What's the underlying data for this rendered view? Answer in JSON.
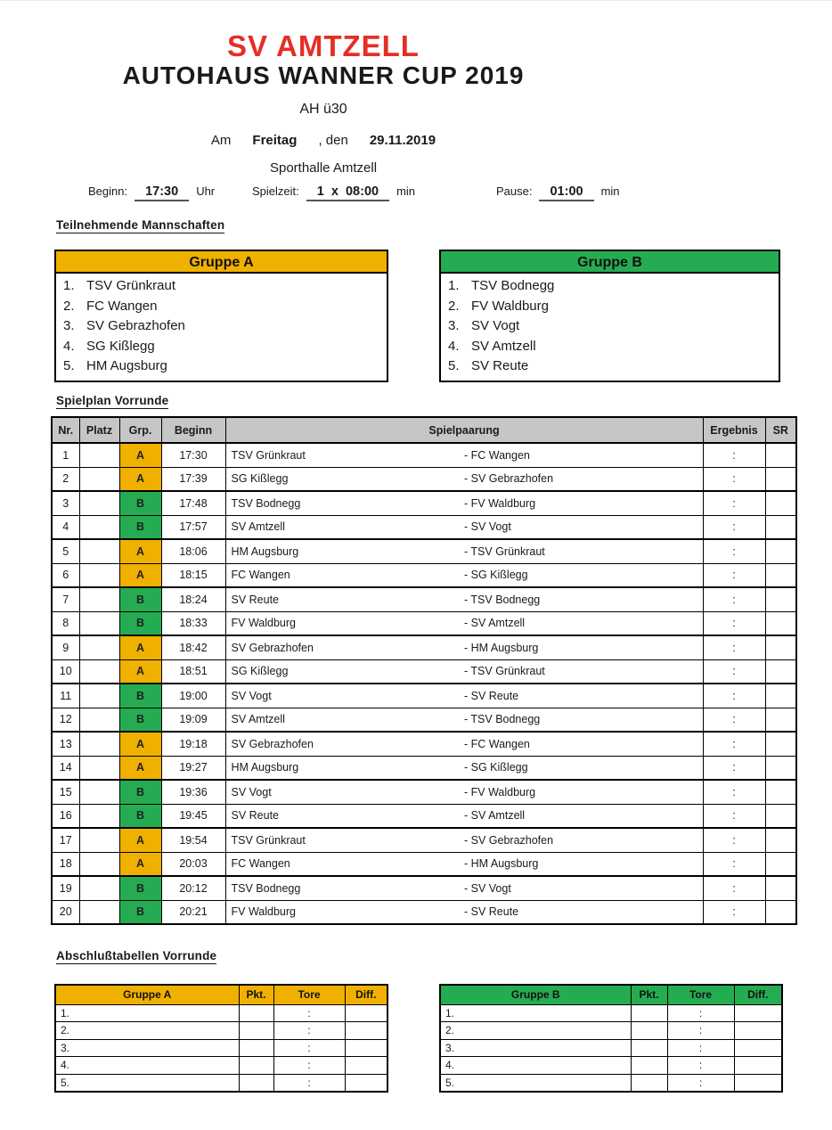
{
  "colors": {
    "red": "#e62e25",
    "yellow": "#f0b000",
    "green": "#25ac52",
    "gray": "#c6c6c6"
  },
  "header": {
    "club": "SV AMTZELL",
    "title": "AUTOHAUS WANNER CUP 2019",
    "category": "AH ü30",
    "date_line": {
      "am": "Am",
      "day": "Freitag",
      "den": ", den",
      "date": "29.11.2019"
    },
    "venue": "Sporthalle Amtzell",
    "info": {
      "beginn_label": "Beginn:",
      "beginn_value": "17:30",
      "beginn_unit": "Uhr",
      "spielzeit_label": "Spielzeit:",
      "spielzeit_value": "1  x  08:00",
      "spielzeit_unit": "min",
      "pause_label": "Pause:",
      "pause_value": "01:00",
      "pause_unit": "min"
    }
  },
  "teams_section": {
    "heading": "Teilnehmende Mannschaften",
    "group_a": {
      "title": "Gruppe A",
      "teams": [
        {
          "no": "1.",
          "name": "TSV Grünkraut"
        },
        {
          "no": "2.",
          "name": "FC Wangen"
        },
        {
          "no": "3.",
          "name": "SV Gebrazhofen"
        },
        {
          "no": "4.",
          "name": "SG Kißlegg"
        },
        {
          "no": "5.",
          "name": "HM Augsburg"
        }
      ]
    },
    "group_b": {
      "title": "Gruppe B",
      "teams": [
        {
          "no": "1.",
          "name": "TSV Bodnegg"
        },
        {
          "no": "2.",
          "name": "FV Waldburg"
        },
        {
          "no": "3.",
          "name": "SV Vogt"
        },
        {
          "no": "4.",
          "name": "SV Amtzell"
        },
        {
          "no": "5.",
          "name": "SV Reute"
        }
      ]
    }
  },
  "spielplan": {
    "heading": "Spielplan Vorrunde",
    "columns": [
      "Nr.",
      "Platz",
      "Grp.",
      "Beginn",
      "Spielpaarung",
      "Ergebnis",
      "SR"
    ],
    "match_separator": "-",
    "ergebnis_placeholder": ":",
    "rows": [
      {
        "nr": "1",
        "platz": "",
        "grp": "A",
        "beginn": "17:30",
        "home": "TSV Grünkraut",
        "away": "FC Wangen",
        "sr": ""
      },
      {
        "nr": "2",
        "platz": "",
        "grp": "A",
        "beginn": "17:39",
        "home": "SG Kißlegg",
        "away": "SV Gebrazhofen",
        "sr": ""
      },
      {
        "nr": "3",
        "platz": "",
        "grp": "B",
        "beginn": "17:48",
        "home": "TSV Bodnegg",
        "away": "FV Waldburg",
        "sr": ""
      },
      {
        "nr": "4",
        "platz": "",
        "grp": "B",
        "beginn": "17:57",
        "home": "SV Amtzell",
        "away": "SV Vogt",
        "sr": ""
      },
      {
        "nr": "5",
        "platz": "",
        "grp": "A",
        "beginn": "18:06",
        "home": "HM Augsburg",
        "away": "TSV Grünkraut",
        "sr": ""
      },
      {
        "nr": "6",
        "platz": "",
        "grp": "A",
        "beginn": "18:15",
        "home": "FC Wangen",
        "away": "SG Kißlegg",
        "sr": ""
      },
      {
        "nr": "7",
        "platz": "",
        "grp": "B",
        "beginn": "18:24",
        "home": "SV Reute",
        "away": "TSV Bodnegg",
        "sr": ""
      },
      {
        "nr": "8",
        "platz": "",
        "grp": "B",
        "beginn": "18:33",
        "home": "FV Waldburg",
        "away": "SV Amtzell",
        "sr": ""
      },
      {
        "nr": "9",
        "platz": "",
        "grp": "A",
        "beginn": "18:42",
        "home": "SV Gebrazhofen",
        "away": "HM Augsburg",
        "sr": ""
      },
      {
        "nr": "10",
        "platz": "",
        "grp": "A",
        "beginn": "18:51",
        "home": "SG Kißlegg",
        "away": "TSV Grünkraut",
        "sr": ""
      },
      {
        "nr": "11",
        "platz": "",
        "grp": "B",
        "beginn": "19:00",
        "home": "SV Vogt",
        "away": "SV Reute",
        "sr": ""
      },
      {
        "nr": "12",
        "platz": "",
        "grp": "B",
        "beginn": "19:09",
        "home": "SV Amtzell",
        "away": "TSV Bodnegg",
        "sr": ""
      },
      {
        "nr": "13",
        "platz": "",
        "grp": "A",
        "beginn": "19:18",
        "home": "SV Gebrazhofen",
        "away": "FC Wangen",
        "sr": ""
      },
      {
        "nr": "14",
        "platz": "",
        "grp": "A",
        "beginn": "19:27",
        "home": "HM Augsburg",
        "away": "SG Kißlegg",
        "sr": ""
      },
      {
        "nr": "15",
        "platz": "",
        "grp": "B",
        "beginn": "19:36",
        "home": "SV Vogt",
        "away": "FV Waldburg",
        "sr": ""
      },
      {
        "nr": "16",
        "platz": "",
        "grp": "B",
        "beginn": "19:45",
        "home": "SV Reute",
        "away": "SV Amtzell",
        "sr": ""
      },
      {
        "nr": "17",
        "platz": "",
        "grp": "A",
        "beginn": "19:54",
        "home": "TSV Grünkraut",
        "away": "SV Gebrazhofen",
        "sr": ""
      },
      {
        "nr": "18",
        "platz": "",
        "grp": "A",
        "beginn": "20:03",
        "home": "FC Wangen",
        "away": "HM Augsburg",
        "sr": ""
      },
      {
        "nr": "19",
        "platz": "",
        "grp": "B",
        "beginn": "20:12",
        "home": "TSV Bodnegg",
        "away": "SV Vogt",
        "sr": ""
      },
      {
        "nr": "20",
        "platz": "",
        "grp": "B",
        "beginn": "20:21",
        "home": "FV Waldburg",
        "away": "SV Reute",
        "sr": ""
      }
    ]
  },
  "final_section": {
    "heading": "Abschlußtabellen Vorrunde",
    "columns": {
      "pkt": "Pkt.",
      "tore": "Tore",
      "diff": "Diff."
    },
    "group_a_title": "Gruppe A",
    "group_b_title": "Gruppe B",
    "row_labels": [
      "1.",
      "2.",
      "3.",
      "4.",
      "5."
    ],
    "tore_placeholder": ":"
  }
}
